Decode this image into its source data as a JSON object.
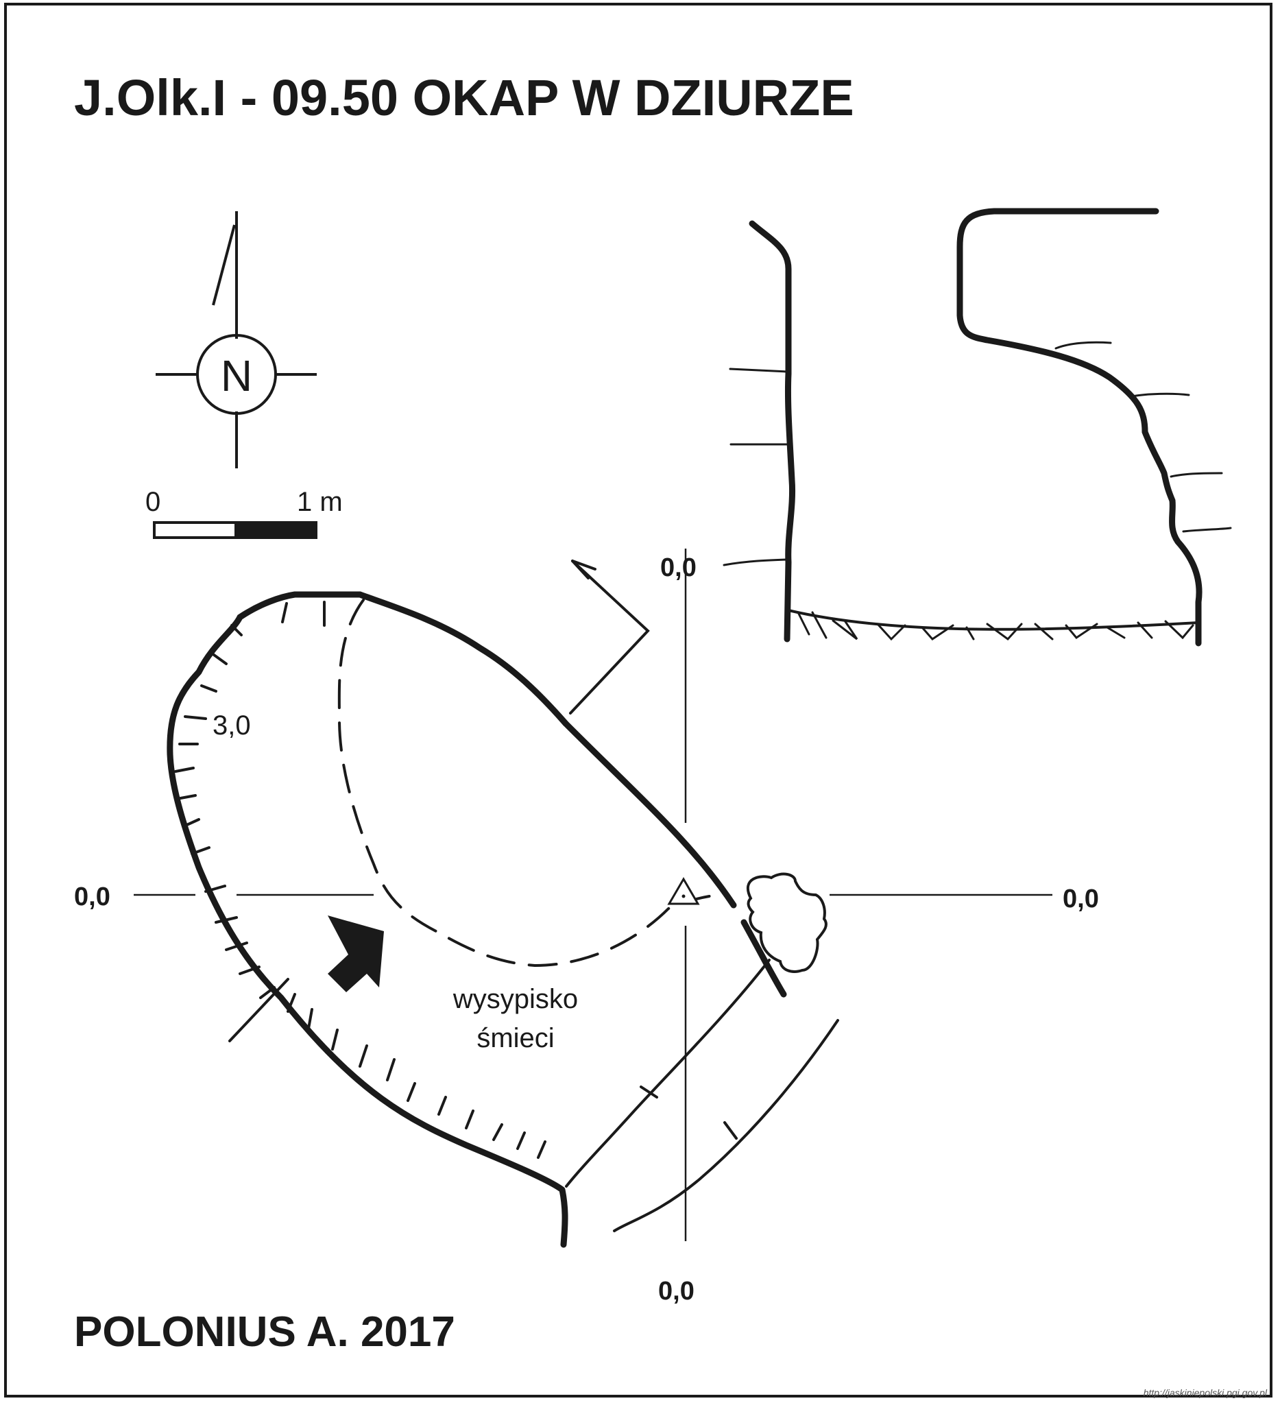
{
  "title": "J.Olk.I - 09.50  OKAP  W DZIURZE",
  "author_line": "POLONIUS A.  2017",
  "compass": {
    "letter": "N"
  },
  "scale_bar": {
    "start_label": "0",
    "end_label": "1 m"
  },
  "plan": {
    "depth_label": "3,0",
    "annotation_line1": "wysypisko",
    "annotation_line2": "śmieci"
  },
  "axis_labels": {
    "left": "0,0",
    "right": "0,0",
    "top": "0,0",
    "bottom": "0,0"
  },
  "credit": "http://jaskiniepolski.pgi.gov.pl",
  "colors": {
    "ink": "#1a1a1a",
    "paper": "#ffffff"
  }
}
